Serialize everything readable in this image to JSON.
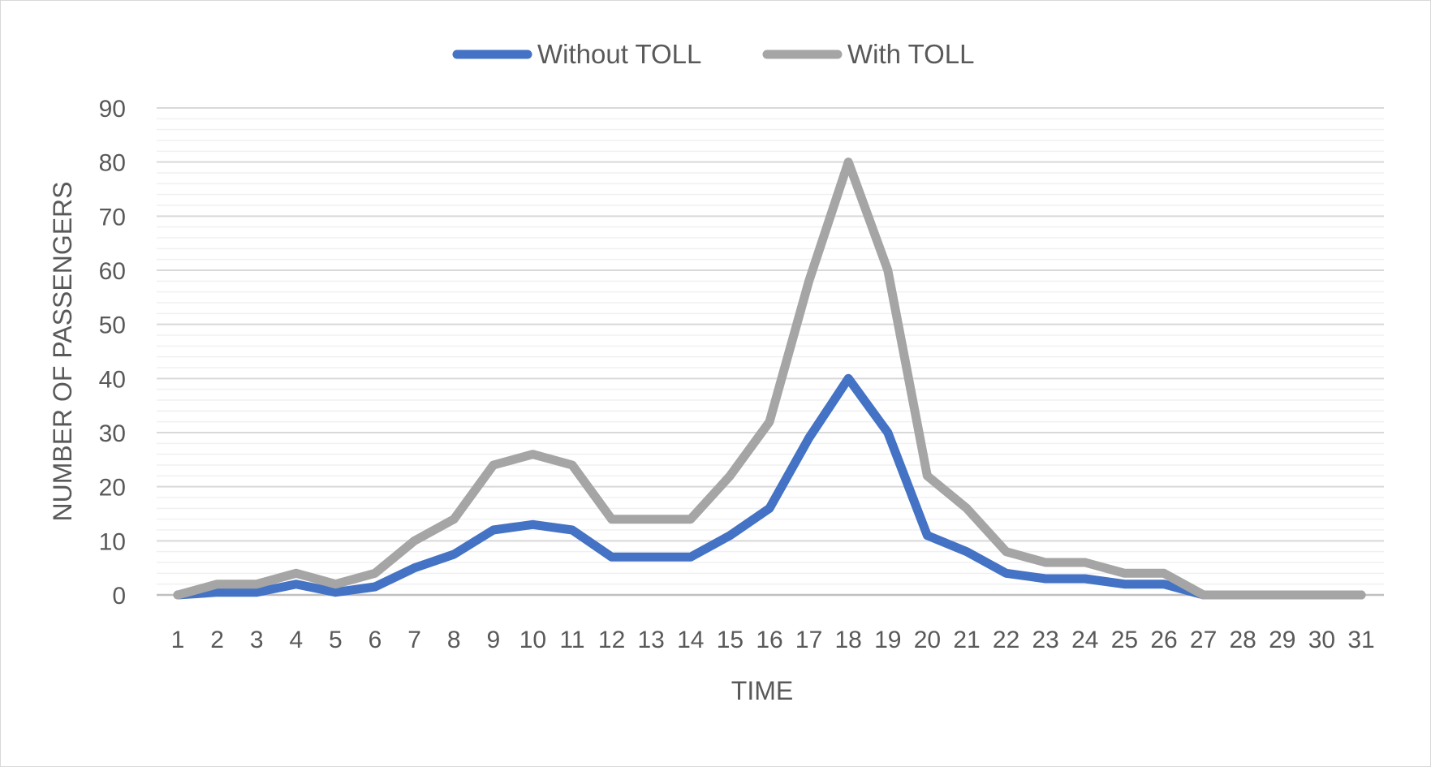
{
  "chart_data": {
    "type": "line",
    "title": "",
    "xlabel": "TIME",
    "ylabel": "NUMBER OF PASSENGERS",
    "ylim": [
      0,
      90
    ],
    "y_major_step": 10,
    "y_minor_step": 2,
    "grid": true,
    "legend_position": "top",
    "categories": [
      "1",
      "2",
      "3",
      "4",
      "5",
      "6",
      "7",
      "8",
      "9",
      "10",
      "11",
      "12",
      "13",
      "14",
      "15",
      "16",
      "17",
      "18",
      "19",
      "20",
      "21",
      "22",
      "23",
      "24",
      "25",
      "26",
      "27",
      "28",
      "29",
      "30",
      "31"
    ],
    "series": [
      {
        "name": "Without TOLL",
        "color": "#4472c4",
        "values": [
          0,
          0.5,
          0.5,
          2,
          0.5,
          1.5,
          5,
          7.5,
          12,
          13,
          12,
          7,
          7,
          7,
          11,
          16,
          29,
          40,
          30,
          11,
          8,
          4,
          3,
          3,
          2,
          2,
          0,
          0,
          0,
          0,
          0
        ]
      },
      {
        "name": "With TOLL",
        "color": "#a5a5a5",
        "values": [
          0,
          2,
          2,
          4,
          2,
          4,
          10,
          14,
          24,
          26,
          24,
          14,
          14,
          14,
          22,
          32,
          58,
          80,
          60,
          22,
          16,
          8,
          6,
          6,
          4,
          4,
          0,
          0,
          0,
          0,
          0
        ]
      }
    ]
  }
}
